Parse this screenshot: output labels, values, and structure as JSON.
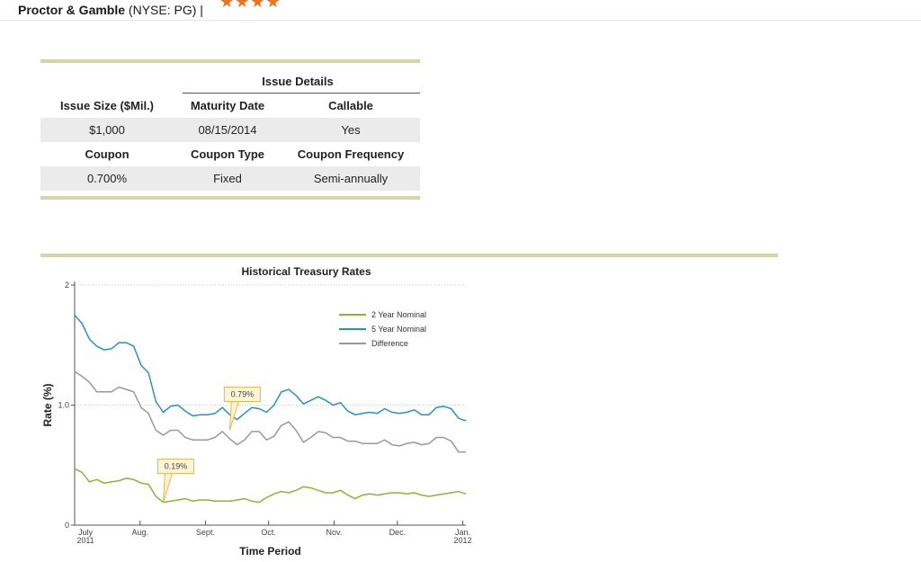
{
  "header": {
    "company": "Proctor & Gamble",
    "ticker": "(NYSE: PG) |",
    "rating_icon": "star-icon",
    "rating_stars": 4,
    "accent": "#e8742a"
  },
  "issue_details": {
    "title": "Issue Details",
    "rows": [
      [
        "Issue Size ($Mil.)",
        "Maturity Date",
        "Callable"
      ],
      [
        "$1,000",
        "08/15/2014",
        "Yes"
      ],
      [
        "Coupon",
        "Coupon Type",
        "Coupon Frequency"
      ],
      [
        "0.700%",
        "Fixed",
        "Semi-annually"
      ]
    ]
  },
  "chart_data": {
    "type": "line",
    "title": "Historical Treasury Rates",
    "xlabel": "Time Period",
    "ylabel": "Rate (%)",
    "ylim": [
      0,
      2
    ],
    "yticks": [
      {
        "value": 0,
        "label": "0"
      },
      {
        "value": 1,
        "label": "1.0"
      },
      {
        "value": 2,
        "label": "2"
      }
    ],
    "xlim": [
      0,
      26.5
    ],
    "xticks": [
      {
        "x": 0,
        "label": "July",
        "label2": "2011"
      },
      {
        "x": 4.43,
        "label": "Aug.",
        "label2": ""
      },
      {
        "x": 8.86,
        "label": "Sept.",
        "label2": ""
      },
      {
        "x": 13.14,
        "label": "Oct.",
        "label2": ""
      },
      {
        "x": 17.57,
        "label": "Nov.",
        "label2": ""
      },
      {
        "x": 21.86,
        "label": "Dec.",
        "label2": ""
      },
      {
        "x": 26.29,
        "label": "Jan.",
        "label2": "2012"
      }
    ],
    "x": [
      0,
      0.5,
      1,
      1.5,
      2,
      2.5,
      3,
      3.5,
      4,
      4.5,
      5,
      5.5,
      6,
      6.5,
      7,
      7.5,
      8,
      8.5,
      9,
      9.5,
      10,
      10.5,
      11,
      11.5,
      12,
      12.5,
      13,
      13.5,
      14,
      14.5,
      15,
      15.5,
      16,
      16.5,
      17,
      17.5,
      18,
      18.5,
      19,
      19.5,
      20,
      20.5,
      21,
      21.5,
      22,
      22.5,
      23,
      23.5,
      24,
      24.5,
      25,
      25.5,
      26,
      26.5
    ],
    "series": [
      {
        "name": "2 Year Nominal",
        "color": "#8db43a",
        "values": [
          0.47,
          0.44,
          0.36,
          0.38,
          0.35,
          0.36,
          0.37,
          0.39,
          0.38,
          0.35,
          0.34,
          0.24,
          0.19,
          0.2,
          0.21,
          0.22,
          0.2,
          0.21,
          0.21,
          0.2,
          0.2,
          0.2,
          0.21,
          0.22,
          0.2,
          0.19,
          0.23,
          0.26,
          0.28,
          0.27,
          0.29,
          0.32,
          0.31,
          0.29,
          0.27,
          0.27,
          0.29,
          0.25,
          0.22,
          0.25,
          0.26,
          0.25,
          0.26,
          0.27,
          0.27,
          0.26,
          0.27,
          0.25,
          0.24,
          0.25,
          0.26,
          0.27,
          0.28,
          0.26
        ]
      },
      {
        "name": "5 Year Nominal",
        "color": "#2b8fc6",
        "values": [
          1.75,
          1.68,
          1.55,
          1.49,
          1.46,
          1.47,
          1.52,
          1.52,
          1.49,
          1.33,
          1.27,
          1.03,
          0.94,
          0.99,
          1.0,
          0.95,
          0.91,
          0.92,
          0.92,
          0.93,
          0.98,
          0.92,
          0.88,
          0.93,
          0.98,
          0.97,
          0.94,
          1.0,
          1.11,
          1.13,
          1.08,
          1.01,
          1.04,
          1.07,
          1.04,
          1.0,
          1.02,
          0.95,
          0.92,
          0.93,
          0.94,
          0.93,
          0.97,
          0.94,
          0.93,
          0.94,
          0.96,
          0.92,
          0.92,
          0.98,
          0.99,
          0.97,
          0.89,
          0.87
        ]
      },
      {
        "name": "Difference",
        "color": "#999999",
        "values": [
          1.28,
          1.24,
          1.19,
          1.11,
          1.11,
          1.11,
          1.15,
          1.13,
          1.11,
          0.98,
          0.93,
          0.79,
          0.75,
          0.79,
          0.79,
          0.73,
          0.71,
          0.71,
          0.71,
          0.73,
          0.78,
          0.72,
          0.67,
          0.71,
          0.78,
          0.78,
          0.71,
          0.74,
          0.83,
          0.86,
          0.79,
          0.69,
          0.73,
          0.78,
          0.77,
          0.73,
          0.73,
          0.7,
          0.7,
          0.68,
          0.68,
          0.68,
          0.71,
          0.67,
          0.66,
          0.68,
          0.69,
          0.67,
          0.68,
          0.73,
          0.73,
          0.7,
          0.61,
          0.61
        ]
      }
    ],
    "annotations": [
      {
        "x": 6.0,
        "y": 0.19,
        "label": "0.19%"
      },
      {
        "x": 10.5,
        "y": 0.79,
        "label": "0.79%"
      }
    ],
    "legend": "top-right",
    "grid": true
  }
}
